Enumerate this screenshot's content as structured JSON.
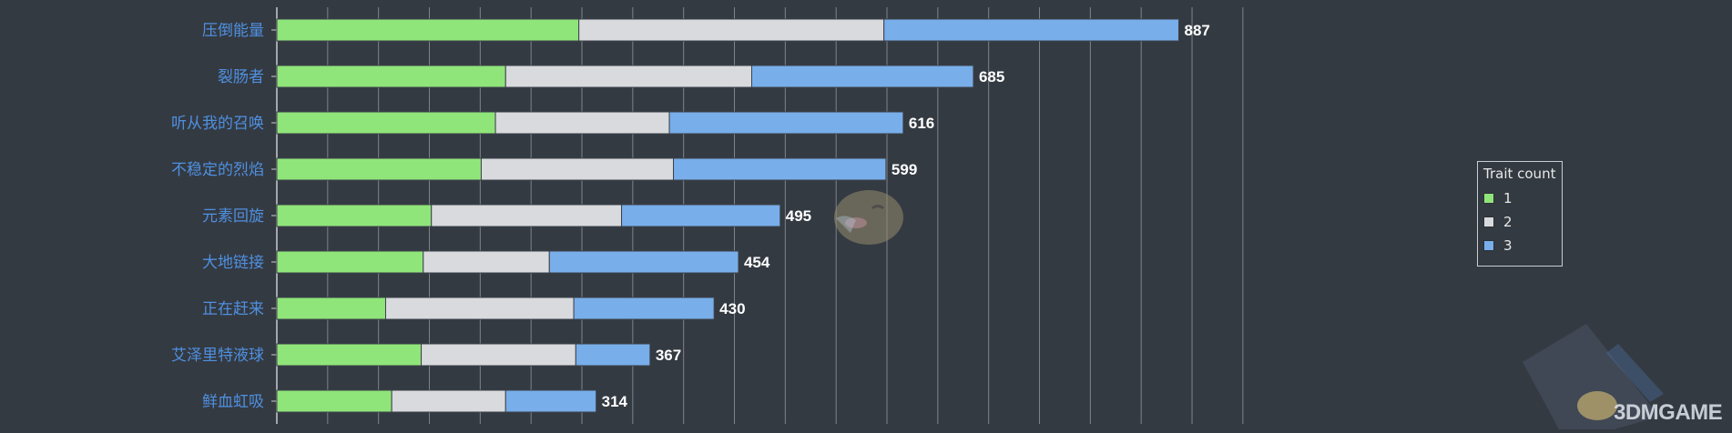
{
  "chart_data": {
    "type": "bar",
    "orientation": "horizontal",
    "stacked": true,
    "categories": [
      "压倒能量",
      "裂肠者",
      "听从我的召唤",
      "不稳定的烈焰",
      "元素回旋",
      "大地链接",
      "正在赶来",
      "艾泽里特液球",
      "鲜血虹吸"
    ],
    "series": [
      {
        "name": "1",
        "values": [
          297,
          225,
          215,
          201,
          152,
          144,
          107,
          142,
          113
        ]
      },
      {
        "name": "2",
        "values": [
          300,
          242,
          171,
          189,
          187,
          124,
          185,
          152,
          112
        ]
      },
      {
        "name": "3",
        "values": [
          290,
          218,
          230,
          209,
          156,
          186,
          138,
          73,
          89
        ]
      }
    ],
    "totals": [
      887,
      685,
      616,
      599,
      495,
      454,
      430,
      367,
      314
    ],
    "xlim": [
      0,
      950
    ],
    "grid": true,
    "legend_position": "right",
    "legend_title": "Trait count",
    "colors": {
      "1": "#90e57a",
      "2": "#d9dadd",
      "3": "#78aeea"
    }
  },
  "legend": {
    "title": "Trait count",
    "items": [
      "1",
      "2",
      "3"
    ]
  },
  "watermark": {
    "text": "3DMGAME"
  },
  "palette": {
    "background": "#343a42",
    "grid": "#7f848b",
    "category_label": "#4f90e0",
    "total_label": "#ffffff"
  }
}
